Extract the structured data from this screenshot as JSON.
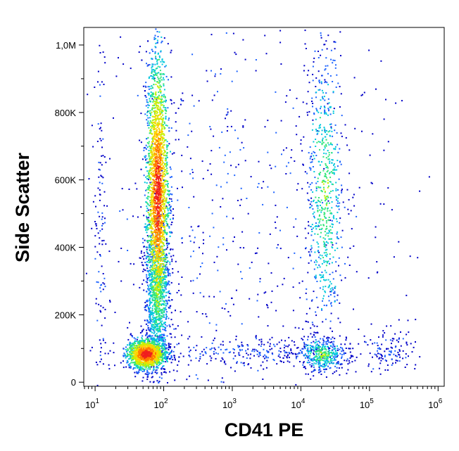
{
  "chart_data": {
    "type": "scatter",
    "title": "",
    "xlabel": "CD41 PE",
    "ylabel": "Side Scatter",
    "x_scale": "log",
    "xlim": [
      7,
      1200000
    ],
    "ylim": [
      -10000,
      1050000
    ],
    "grid": false,
    "x_ticks": [
      {
        "value": 10,
        "base": "10",
        "exp": "1"
      },
      {
        "value": 100,
        "base": "10",
        "exp": "2"
      },
      {
        "value": 1000,
        "base": "10",
        "exp": "3"
      },
      {
        "value": 10000,
        "base": "10",
        "exp": "4"
      },
      {
        "value": 100000,
        "base": "10",
        "exp": "5"
      },
      {
        "value": 1000000,
        "base": "10",
        "exp": "6"
      }
    ],
    "y_ticks": [
      {
        "value": 0,
        "label": "0"
      },
      {
        "value": 200000,
        "label": "200K"
      },
      {
        "value": 400000,
        "label": "400K"
      },
      {
        "value": 600000,
        "label": "600K"
      },
      {
        "value": 800000,
        "label": "800K"
      },
      {
        "value": 1000000,
        "label": "1,0M"
      }
    ],
    "density_colors": [
      "#0000c8",
      "#1e64ff",
      "#00c8dc",
      "#32e678",
      "#c8f000",
      "#ffd200",
      "#ff7800",
      "#f01e1e"
    ],
    "populations": [
      {
        "x_center": 55,
        "x_spread_decades": 0.14,
        "y_center": 85000,
        "y_spread": 22000,
        "count": 1400,
        "density": "high"
      },
      {
        "x_center": 80,
        "x_spread_decades": 0.08,
        "y_center": 560000,
        "y_spread": 200000,
        "count": 2600,
        "density": "high"
      },
      {
        "x_center": 80,
        "x_spread_decades": 0.09,
        "y_center": 260000,
        "y_spread": 120000,
        "count": 900,
        "density": "medium"
      },
      {
        "x_center": 22000,
        "x_spread_decades": 0.14,
        "y_center": 560000,
        "y_spread": 230000,
        "count": 700,
        "density": "medium"
      },
      {
        "x_center": 20000,
        "x_spread_decades": 0.18,
        "y_center": 85000,
        "y_spread": 25000,
        "count": 380,
        "density": "medium"
      },
      {
        "x_center": 180000,
        "x_spread_decades": 0.2,
        "y_center": 90000,
        "y_spread": 35000,
        "count": 110,
        "density": "low"
      },
      {
        "x_center": 1500,
        "x_spread_decades": 0.9,
        "y_center": 90000,
        "y_spread": 20000,
        "count": 300,
        "density": "low"
      },
      {
        "x_center": 1000,
        "x_spread_decades": 1.2,
        "y_center": 500000,
        "y_spread": 300000,
        "count": 550,
        "density": "low"
      },
      {
        "x_center": 12,
        "x_spread_decades": 0.05,
        "y_center": 450000,
        "y_spread": 300000,
        "count": 120,
        "density": "low"
      }
    ]
  }
}
